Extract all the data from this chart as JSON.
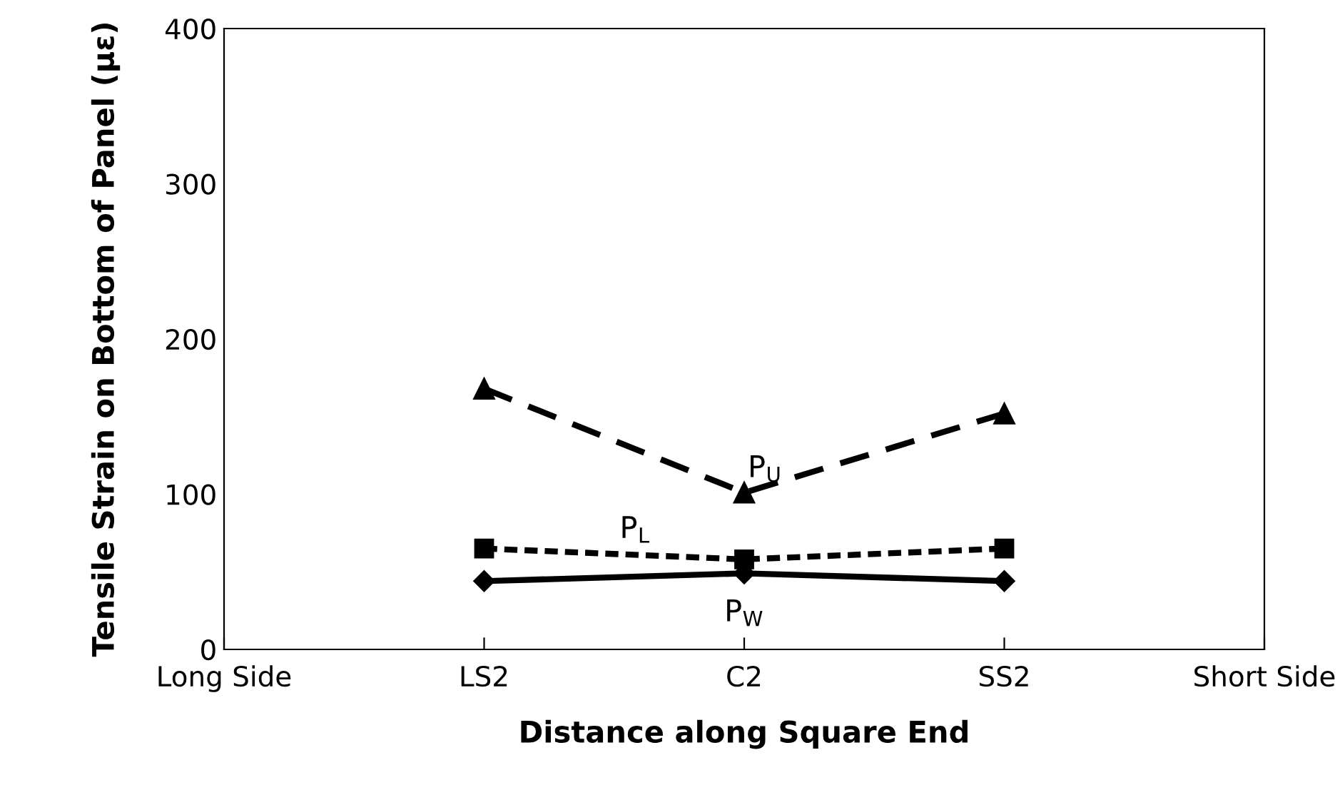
{
  "chart_data": {
    "type": "line",
    "xlabel": "Distance along Square End",
    "ylabel": "Tensile Strain on Bottom of Panel (µε)",
    "categories": [
      "Long Side",
      "LS2",
      "C2",
      "SS2",
      "Short Side"
    ],
    "ylim": [
      0,
      400
    ],
    "yticks": [
      0,
      100,
      200,
      300,
      400
    ],
    "grid": false,
    "legend": false,
    "series": [
      {
        "name": "P$_{U}$",
        "color": "#000000",
        "marker": "triangle",
        "line_style": "dashed",
        "values": [
          null,
          168,
          101,
          152,
          null
        ]
      },
      {
        "name": "P$_{L}$",
        "color": "#000000",
        "marker": "square",
        "line_style": "dotted",
        "values": [
          null,
          65,
          58,
          65,
          null
        ]
      },
      {
        "name": "P$_{W}$",
        "color": "#000000",
        "marker": "diamond",
        "line_style": "solid",
        "values": [
          null,
          44,
          49,
          44,
          null
        ]
      }
    ]
  }
}
